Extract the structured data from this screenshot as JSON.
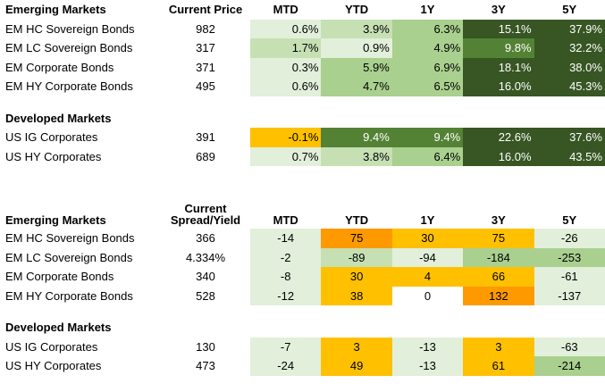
{
  "price_table": {
    "headers": [
      "Emerging Markets",
      "Current Price",
      "MTD",
      "YTD",
      "1Y",
      "3Y",
      "5Y"
    ],
    "section_1": [
      {
        "name": "EM HC Sovereign Bonds",
        "price": "982",
        "values": [
          "0.6%",
          "3.9%",
          "6.3%",
          "15.1%",
          "37.9%"
        ],
        "fills": [
          "#e2efda",
          "#c6e0b4",
          "#a9d08e",
          "#375623",
          "#375623"
        ]
      },
      {
        "name": "EM LC Sovereign Bonds",
        "price": "317",
        "values": [
          "1.7%",
          "0.9%",
          "4.9%",
          "9.8%",
          "32.2%"
        ],
        "fills": [
          "#c6e0b4",
          "#e2efda",
          "#a9d08e",
          "#548235",
          "#375623"
        ]
      },
      {
        "name": "EM Corporate Bonds",
        "price": "371",
        "values": [
          "0.3%",
          "5.9%",
          "6.9%",
          "18.1%",
          "38.0%"
        ],
        "fills": [
          "#e2efda",
          "#a9d08e",
          "#a9d08e",
          "#375623",
          "#375623"
        ]
      },
      {
        "name": "EM HY Corporate Bonds",
        "price": "495",
        "values": [
          "0.6%",
          "4.7%",
          "6.5%",
          "16.0%",
          "45.3%"
        ],
        "fills": [
          "#e2efda",
          "#a9d08e",
          "#a9d08e",
          "#375623",
          "#375623"
        ]
      }
    ],
    "section_2_title": "Developed Markets",
    "section_2": [
      {
        "name": "US IG Corporates",
        "price": "391",
        "values": [
          "-0.1%",
          "9.4%",
          "9.4%",
          "22.6%",
          "37.6%"
        ],
        "fills": [
          "#ffc000",
          "#548235",
          "#548235",
          "#375623",
          "#375623"
        ]
      },
      {
        "name": "US HY Corporates",
        "price": "689",
        "values": [
          "0.7%",
          "3.8%",
          "6.4%",
          "16.0%",
          "43.5%"
        ],
        "fills": [
          "#e2efda",
          "#c6e0b4",
          "#a9d08e",
          "#375623",
          "#375623"
        ]
      }
    ]
  },
  "spread_table": {
    "headers": [
      "Emerging Markets",
      "Current Spread/Yield",
      "MTD",
      "YTD",
      "1Y",
      "3Y",
      "5Y"
    ],
    "section_1": [
      {
        "name": "EM HC Sovereign Bonds",
        "price": "366",
        "values": [
          "-14",
          "75",
          "30",
          "75",
          "-26"
        ],
        "fills": [
          "#e2efda",
          "#ff9900",
          "#ffc000",
          "#ffc000",
          "#e2efda"
        ]
      },
      {
        "name": "EM LC Sovereign Bonds",
        "price": "4.334%",
        "values": [
          "-2",
          "-89",
          "-94",
          "-184",
          "-253"
        ],
        "fills": [
          "#e2efda",
          "#c6e0b4",
          "#e2efda",
          "#a9d08e",
          "#a9d08e"
        ]
      },
      {
        "name": "EM Corporate Bonds",
        "price": "340",
        "values": [
          "-8",
          "30",
          "4",
          "66",
          "-61"
        ],
        "fills": [
          "#e2efda",
          "#ffc000",
          "#ffc000",
          "#ffc000",
          "#e2efda"
        ]
      },
      {
        "name": "EM HY Corporate Bonds",
        "price": "528",
        "values": [
          "-12",
          "38",
          "0",
          "132",
          "-137"
        ],
        "fills": [
          "#e2efda",
          "#ffc000",
          "#ffffff",
          "#ff9900",
          "#e2efda"
        ]
      }
    ],
    "section_2_title": "Developed Markets",
    "section_2": [
      {
        "name": "US IG Corporates",
        "price": "130",
        "values": [
          "-7",
          "3",
          "-13",
          "3",
          "-63"
        ],
        "fills": [
          "#e2efda",
          "#ffc000",
          "#e2efda",
          "#ffc000",
          "#e2efda"
        ]
      },
      {
        "name": "US HY Corporates",
        "price": "473",
        "values": [
          "-24",
          "49",
          "-13",
          "61",
          "-214"
        ],
        "fills": [
          "#e2efda",
          "#ffc000",
          "#e2efda",
          "#ffc000",
          "#a9d08e"
        ]
      }
    ]
  }
}
